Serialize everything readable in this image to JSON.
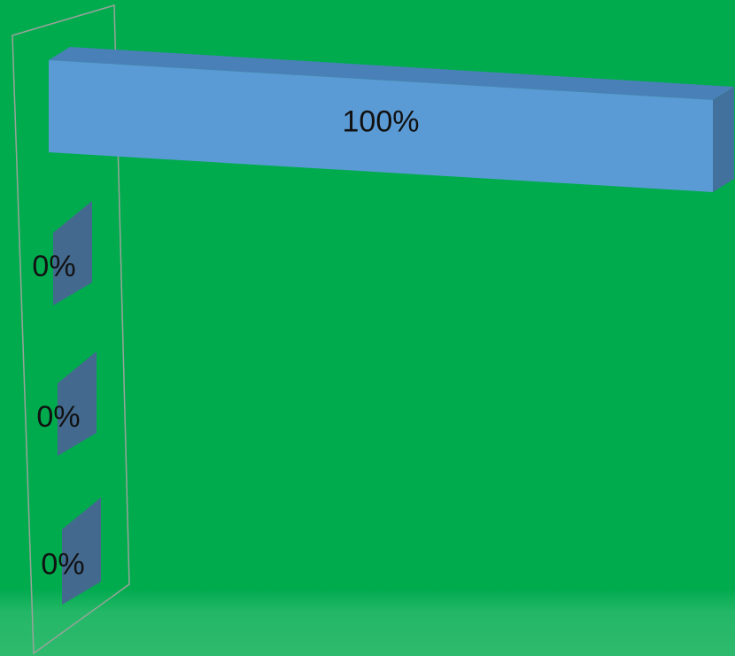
{
  "chart_data": {
    "type": "bar",
    "orientation": "horizontal",
    "style": "3d",
    "categories": [
      "",
      "",
      "",
      ""
    ],
    "values": [
      100,
      0,
      0,
      0
    ],
    "data_labels": [
      "100%",
      "0%",
      "0%",
      "0%"
    ],
    "xlim": [
      0,
      100
    ],
    "title": "",
    "xlabel": "",
    "ylabel": "",
    "grid": false,
    "legend": "none"
  },
  "colors": {
    "background": "#00ab4e",
    "bar_front": "#5b9bd5",
    "bar_top": "#4a80b8",
    "bar_side": "#41719c",
    "zero_bar": "#44698e",
    "wall_line": "#9aa39a",
    "label": "#111111"
  }
}
